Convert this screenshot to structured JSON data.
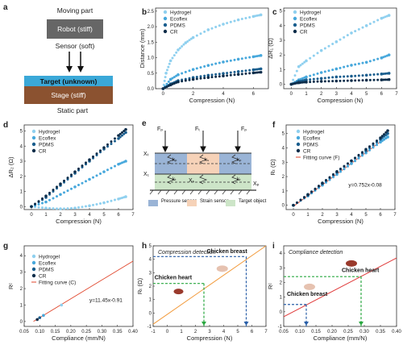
{
  "panels": [
    "a",
    "b",
    "c",
    "d",
    "e",
    "f",
    "g",
    "h",
    "i"
  ],
  "a": {
    "moving_part": "Moving part",
    "robot": "Robot (stiff)",
    "sensor": "Sensor (soft)",
    "target": "Target (unknown)",
    "stage": "Stage (stiff)",
    "static_part": "Static part",
    "colors": {
      "robot": "#666666",
      "target": "#3aa8d8",
      "stage": "#8b5230"
    }
  },
  "legend_names": [
    "Hydrogel",
    "Ecoflex",
    "PDMS",
    "CR"
  ],
  "series_colors": [
    "#8fd0ef",
    "#47a8dc",
    "#1a5e8e",
    "#0d2d4a"
  ],
  "chart_data": [
    {
      "panel": "b",
      "type": "scatter",
      "xlabel": "Compression (N)",
      "ylabel": "Distance (mm)",
      "xlim": [
        -0.5,
        7
      ],
      "ylim": [
        0,
        2.6
      ],
      "xticks": [
        "0",
        "2",
        "4",
        "6"
      ],
      "yticks": [
        "0.0",
        "0.5",
        "1.0",
        "1.5",
        "2.0",
        "2.5"
      ],
      "series": [
        {
          "name": "Hydrogel",
          "x": [
            0,
            0.2,
            0.5,
            1,
            1.5,
            2,
            3,
            4,
            5,
            6,
            6.5
          ],
          "y": [
            0,
            0.5,
            0.9,
            1.25,
            1.48,
            1.65,
            1.9,
            2.08,
            2.22,
            2.33,
            2.38
          ]
        },
        {
          "name": "Ecoflex",
          "x": [
            0,
            0.5,
            1,
            2,
            3,
            4,
            5,
            6,
            6.5
          ],
          "y": [
            0,
            0.3,
            0.45,
            0.62,
            0.75,
            0.86,
            0.95,
            1.03,
            1.07
          ]
        },
        {
          "name": "PDMS",
          "x": [
            0,
            0.5,
            1,
            2,
            3,
            4,
            5,
            6,
            6.5
          ],
          "y": [
            0,
            0.15,
            0.26,
            0.36,
            0.43,
            0.49,
            0.55,
            0.61,
            0.64
          ]
        },
        {
          "name": "CR",
          "x": [
            0,
            0.5,
            1,
            2,
            3,
            4,
            5,
            6,
            6.5
          ],
          "y": [
            0,
            0.12,
            0.22,
            0.3,
            0.36,
            0.41,
            0.46,
            0.51,
            0.53
          ]
        }
      ]
    },
    {
      "panel": "c",
      "type": "scatter",
      "xlabel": "Compression (N)",
      "ylabel": "ΔR₁ (Ω)",
      "xlim": [
        -0.5,
        7
      ],
      "ylim": [
        -0.3,
        5.2
      ],
      "xticks": [
        "0",
        "1",
        "2",
        "3",
        "4",
        "5",
        "6",
        "7"
      ],
      "yticks": [
        "0",
        "1",
        "2",
        "3",
        "4",
        "5"
      ],
      "series": [
        {
          "name": "Hydrogel",
          "x": [
            0,
            0.5,
            1,
            2,
            3,
            4,
            5,
            6,
            6.5
          ],
          "y": [
            0,
            1.2,
            1.6,
            2.3,
            2.9,
            3.5,
            4.0,
            4.5,
            4.7
          ]
        },
        {
          "name": "Ecoflex",
          "x": [
            0,
            0.5,
            1,
            2,
            3,
            4,
            5,
            6,
            6.5
          ],
          "y": [
            0,
            0.3,
            0.5,
            0.8,
            1.05,
            1.3,
            1.5,
            1.8,
            2.0
          ]
        },
        {
          "name": "PDMS",
          "x": [
            0,
            0.5,
            1,
            2,
            3,
            4,
            5,
            6,
            6.5
          ],
          "y": [
            0,
            0.2,
            0.3,
            0.4,
            0.5,
            0.55,
            0.62,
            0.7,
            0.75
          ]
        },
        {
          "name": "CR",
          "x": [
            0,
            0.5,
            1,
            2,
            3,
            4,
            5,
            6,
            6.5
          ],
          "y": [
            0,
            0.1,
            0.15,
            0.2,
            0.22,
            0.25,
            0.28,
            0.3,
            0.32
          ]
        }
      ]
    },
    {
      "panel": "d",
      "type": "scatter",
      "xlabel": "Compression (N)",
      "ylabel": "ΔR₂ (Ω)",
      "xlim": [
        -0.5,
        7
      ],
      "ylim": [
        -0.2,
        5.4
      ],
      "xticks": [
        "0",
        "1",
        "2",
        "3",
        "4",
        "5",
        "6",
        "7"
      ],
      "yticks": [
        "0",
        "1",
        "2",
        "3",
        "4",
        "5"
      ],
      "series": [
        {
          "name": "Hydrogel",
          "x": [
            0,
            1,
            2,
            3,
            4,
            5,
            6,
            6.5
          ],
          "y": [
            0,
            -0.1,
            -0.15,
            -0.1,
            0.05,
            0.25,
            0.5,
            0.65
          ]
        },
        {
          "name": "Ecoflex",
          "x": [
            0,
            1,
            2,
            3,
            4,
            5,
            6,
            6.5
          ],
          "y": [
            0,
            0.3,
            0.8,
            1.3,
            1.8,
            2.3,
            2.8,
            3.0
          ]
        },
        {
          "name": "PDMS",
          "x": [
            0,
            1,
            2,
            3,
            4,
            5,
            6,
            6.5
          ],
          "y": [
            0,
            0.6,
            1.4,
            2.2,
            3.0,
            3.8,
            4.5,
            4.9
          ]
        },
        {
          "name": "CR",
          "x": [
            0,
            1,
            2,
            3,
            4,
            5,
            6,
            6.5
          ],
          "y": [
            0,
            0.7,
            1.5,
            2.3,
            3.1,
            3.9,
            4.7,
            5.1
          ]
        }
      ]
    },
    {
      "panel": "f",
      "type": "scatter",
      "xlabel": "Compression (N)",
      "ylabel": "Rₜ (Ω)",
      "xlim": [
        -0.5,
        7
      ],
      "ylim": [
        -0.3,
        5.6
      ],
      "xticks": [
        "0",
        "1",
        "2",
        "3",
        "4",
        "5",
        "6",
        "7"
      ],
      "yticks": [
        "0",
        "1",
        "2",
        "3",
        "4",
        "5"
      ],
      "fit_label": "Fitting curve (F)",
      "equation": "y=0.752x-0.08",
      "series": [
        {
          "name": "Hydrogel",
          "x": [
            0,
            1,
            2,
            3,
            4,
            5,
            6,
            6.5
          ],
          "y": [
            0,
            0.75,
            1.45,
            2.2,
            2.95,
            3.7,
            4.45,
            4.8
          ]
        },
        {
          "name": "Ecoflex",
          "x": [
            0,
            1,
            2,
            3,
            4,
            5,
            6,
            6.5
          ],
          "y": [
            0,
            0.65,
            1.4,
            2.15,
            2.9,
            3.65,
            4.4,
            4.75
          ]
        },
        {
          "name": "PDMS",
          "x": [
            0,
            1,
            2,
            3,
            4,
            5,
            6,
            6.5
          ],
          "y": [
            0,
            0.7,
            1.5,
            2.3,
            3.1,
            3.8,
            4.6,
            5.0
          ]
        },
        {
          "name": "CR",
          "x": [
            0,
            1,
            2,
            3,
            4,
            5,
            6,
            6.5
          ],
          "y": [
            0,
            0.75,
            1.55,
            2.35,
            3.1,
            3.9,
            4.7,
            5.2
          ]
        }
      ]
    },
    {
      "panel": "g",
      "type": "scatter",
      "xlabel": "Compliance (mm/N)",
      "ylabel": "Rᶜ",
      "xlim": [
        0.05,
        0.4
      ],
      "ylim": [
        -0.3,
        4.6
      ],
      "xticks": [
        "0.05",
        "0.10",
        "0.15",
        "0.20",
        "0.25",
        "0.30",
        "0.35",
        "0.40"
      ],
      "yticks": [
        "0",
        "1",
        "2",
        "3",
        "4"
      ],
      "fit_label": "Fitting curve (C)",
      "equation": "y=11.45x-0.91",
      "series": [
        {
          "name": "Hydrogel",
          "x": [
            0.17
          ],
          "y": [
            1.0
          ]
        },
        {
          "name": "Ecoflex",
          "x": [
            0.112
          ],
          "y": [
            0.37
          ]
        },
        {
          "name": "PDMS",
          "x": [
            0.1
          ],
          "y": [
            0.23
          ]
        },
        {
          "name": "CR",
          "x": [
            0.092
          ],
          "y": [
            0.12
          ]
        }
      ]
    },
    {
      "panel": "h",
      "type": "line",
      "title": "Compression detection",
      "xlabel": "Compression (N)",
      "ylabel": "Rₜ (Ω)",
      "xlim": [
        -1,
        7
      ],
      "ylim": [
        -1,
        5
      ],
      "xticks": [
        "-1",
        "0",
        "1",
        "2",
        "3",
        "4",
        "5",
        "6",
        "7"
      ],
      "yticks": [
        "-1",
        "0",
        "1",
        "2",
        "3",
        "4",
        "5"
      ],
      "annotations": [
        "Chicken breast",
        "Chicken heart"
      ],
      "points": [
        {
          "x": 2.6,
          "y": 2.2
        },
        {
          "x": 5.6,
          "y": 4.2
        }
      ]
    },
    {
      "panel": "i",
      "type": "line",
      "title": "Compliance detection",
      "xlabel": "Compliance (mm/N)",
      "ylabel": "Rᶜ",
      "xlim": [
        0.05,
        0.4
      ],
      "ylim": [
        -1,
        4.5
      ],
      "xticks": [
        "0.05",
        "0.10",
        "0.15",
        "0.20",
        "0.25",
        "0.30",
        "0.35",
        "0.40"
      ],
      "yticks": [
        "-1",
        "0",
        "1",
        "2",
        "3",
        "4"
      ],
      "annotations": [
        "Chicken heart",
        "Chicken breast"
      ],
      "points": [
        {
          "x": 0.29,
          "y": 2.4
        },
        {
          "x": 0.12,
          "y": 0.5
        }
      ]
    }
  ],
  "e": {
    "labels": {
      "fp1": "Fₚ",
      "ft": "Fₜ",
      "fp2": "Fₚ",
      "xt": "Xₜ",
      "x1": "X₁",
      "xs": "Xₛ",
      "x2": "X₂",
      "x3": "Xₚ",
      "kp": "kₚ",
      "ks": "kₛ",
      "kt": "kₜ",
      "kp2": "kₚ",
      "kt2": "kₜ",
      "ko": "kₒ"
    },
    "legend": [
      "Pressure sensor",
      "Strain sensor",
      "Target object"
    ],
    "colors": [
      "#9ab4d6",
      "#f6d2b8",
      "#cde5c8"
    ]
  }
}
